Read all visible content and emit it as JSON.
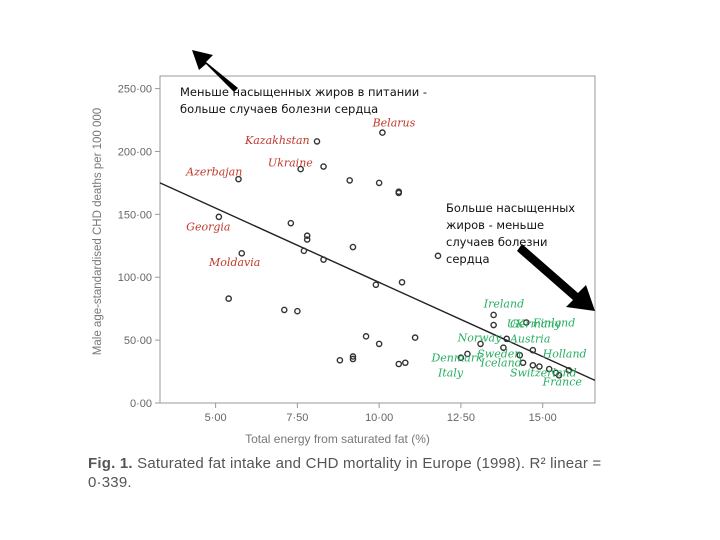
{
  "chart_data": {
    "type": "scatter",
    "title": "",
    "xlabel": "Total energy from saturated fat (%)",
    "ylabel": "Male age-standardised CHD deaths per 100 000",
    "xlim": [
      3.3,
      16.6
    ],
    "ylim": [
      0,
      260
    ],
    "x_ticks": [
      5,
      7.5,
      10,
      12.5,
      15
    ],
    "x_tick_labels": [
      "5·00",
      "7·50",
      "10·00",
      "12·50",
      "15·00"
    ],
    "y_ticks": [
      0,
      50,
      100,
      150,
      200,
      250
    ],
    "y_tick_labels": [
      "0·00",
      "50·00",
      "100·00",
      "150·00",
      "200·00",
      "250·00"
    ],
    "grid": false,
    "trendline": {
      "x": [
        3.3,
        16.6
      ],
      "y": [
        175,
        18
      ]
    },
    "points": [
      {
        "x": 10.1,
        "y": 215
      },
      {
        "x": 8.1,
        "y": 208
      },
      {
        "x": 7.6,
        "y": 186
      },
      {
        "x": 8.3,
        "y": 188
      },
      {
        "x": 5.7,
        "y": 178
      },
      {
        "x": 9.1,
        "y": 177
      },
      {
        "x": 10.0,
        "y": 175
      },
      {
        "x": 10.6,
        "y": 167
      },
      {
        "x": 10.6,
        "y": 168
      },
      {
        "x": 5.1,
        "y": 148
      },
      {
        "x": 7.3,
        "y": 143
      },
      {
        "x": 7.8,
        "y": 133
      },
      {
        "x": 7.8,
        "y": 130
      },
      {
        "x": 9.2,
        "y": 124
      },
      {
        "x": 7.7,
        "y": 121
      },
      {
        "x": 5.8,
        "y": 119
      },
      {
        "x": 8.3,
        "y": 114
      },
      {
        "x": 11.8,
        "y": 117
      },
      {
        "x": 10.7,
        "y": 96
      },
      {
        "x": 9.9,
        "y": 94
      },
      {
        "x": 5.4,
        "y": 83
      },
      {
        "x": 7.1,
        "y": 74
      },
      {
        "x": 7.5,
        "y": 73
      },
      {
        "x": 13.5,
        "y": 70
      },
      {
        "x": 13.5,
        "y": 62
      },
      {
        "x": 14.5,
        "y": 64
      },
      {
        "x": 11.1,
        "y": 52
      },
      {
        "x": 9.6,
        "y": 53
      },
      {
        "x": 10.0,
        "y": 47
      },
      {
        "x": 13.9,
        "y": 51
      },
      {
        "x": 13.1,
        "y": 47
      },
      {
        "x": 13.8,
        "y": 44
      },
      {
        "x": 14.7,
        "y": 42
      },
      {
        "x": 14.3,
        "y": 38
      },
      {
        "x": 12.7,
        "y": 39
      },
      {
        "x": 12.5,
        "y": 36
      },
      {
        "x": 9.2,
        "y": 37
      },
      {
        "x": 8.8,
        "y": 34
      },
      {
        "x": 9.2,
        "y": 35
      },
      {
        "x": 10.6,
        "y": 31
      },
      {
        "x": 10.8,
        "y": 32
      },
      {
        "x": 14.4,
        "y": 32
      },
      {
        "x": 14.7,
        "y": 30
      },
      {
        "x": 14.9,
        "y": 29
      },
      {
        "x": 15.5,
        "y": 22
      },
      {
        "x": 15.2,
        "y": 27
      },
      {
        "x": 15.8,
        "y": 26
      },
      {
        "x": 15.4,
        "y": 24
      }
    ],
    "country_labels": [
      {
        "name": "Belarus",
        "x": 9.8,
        "y": 220,
        "color": "#c0392b"
      },
      {
        "name": "Kazakhstan",
        "x": 5.9,
        "y": 206,
        "color": "#c0392b"
      },
      {
        "name": "Ukraine",
        "x": 6.6,
        "y": 188,
        "color": "#c0392b"
      },
      {
        "name": "Azerbajan",
        "x": 4.1,
        "y": 181,
        "color": "#c0392b"
      },
      {
        "name": "Georgia",
        "x": 4.1,
        "y": 137,
        "color": "#c0392b"
      },
      {
        "name": "Moldavia",
        "x": 4.8,
        "y": 109,
        "color": "#c0392b"
      },
      {
        "name": "Ireland",
        "x": 13.2,
        "y": 76,
        "color": "#27ae60"
      },
      {
        "name": "UK",
        "x": 13.9,
        "y": 60,
        "color": "#27ae60"
      },
      {
        "name": "Finland",
        "x": 14.7,
        "y": 61,
        "color": "#27ae60"
      },
      {
        "name": "Norway",
        "x": 12.4,
        "y": 49,
        "color": "#27ae60"
      },
      {
        "name": "Austria",
        "x": 14.0,
        "y": 48,
        "color": "#27ae60"
      },
      {
        "name": "Germany",
        "x": 14.0,
        "y": 60,
        "color": "#27ae60"
      },
      {
        "name": "Sweden",
        "x": 13.0,
        "y": 36,
        "color": "#27ae60"
      },
      {
        "name": "Holland",
        "x": 15.0,
        "y": 36,
        "color": "#27ae60"
      },
      {
        "name": "Denmark",
        "x": 11.6,
        "y": 33,
        "color": "#27ae60"
      },
      {
        "name": "Iceland",
        "x": 13.1,
        "y": 29,
        "color": "#27ae60"
      },
      {
        "name": "Switzerland",
        "x": 14.0,
        "y": 21,
        "color": "#27ae60"
      },
      {
        "name": "Italy",
        "x": 11.8,
        "y": 21,
        "color": "#27ae60"
      },
      {
        "name": "France",
        "x": 15.0,
        "y": 14,
        "color": "#27ae60"
      }
    ]
  },
  "caption": {
    "fig_label": "Fig. 1.",
    "text": "Saturated fat intake and CHD mortality in Europe (1998). R² linear = 0·339."
  },
  "notes": {
    "left": "Меньше насыщенных жиров в питании - больше случаев болезни сердца",
    "right": "Больше насыщенных жиров - меньше случаев болезни сердца"
  }
}
